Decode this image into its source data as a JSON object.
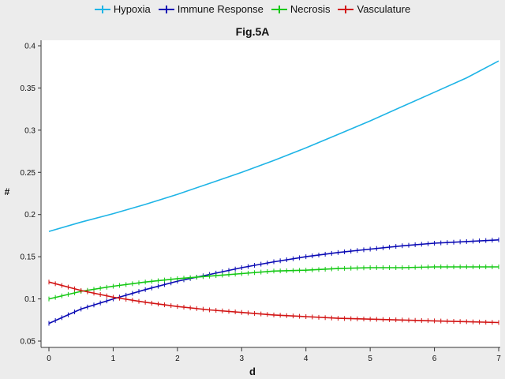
{
  "chart_data": {
    "type": "line",
    "title": "Fig.5A",
    "xlabel": "d",
    "ylabel": "#",
    "xlim": [
      0,
      7
    ],
    "ylim": [
      0.05,
      0.4
    ],
    "xticks": [
      "0",
      "1",
      "2",
      "3",
      "4",
      "5",
      "6",
      "7"
    ],
    "yticks": [
      "0.05",
      "0.1",
      "0.15",
      "0.2",
      "0.25",
      "0.3",
      "0.35",
      "0.4"
    ],
    "grid": false,
    "legend_position": "top",
    "x": [
      0,
      0.5,
      1,
      1.5,
      2,
      2.5,
      3,
      3.5,
      4,
      4.5,
      5,
      5.5,
      6,
      6.5,
      7
    ],
    "series": [
      {
        "name": "Hypoxia",
        "color": "#1EB4E6",
        "markers": false,
        "values": [
          0.18,
          0.191,
          0.201,
          0.212,
          0.224,
          0.237,
          0.25,
          0.264,
          0.279,
          0.295,
          0.311,
          0.328,
          0.345,
          0.362,
          0.382
        ]
      },
      {
        "name": "Immune Response",
        "color": "#0A0AB4",
        "markers": true,
        "values": [
          0.071,
          0.088,
          0.1,
          0.111,
          0.121,
          0.129,
          0.137,
          0.144,
          0.15,
          0.155,
          0.159,
          0.163,
          0.166,
          0.168,
          0.17
        ]
      },
      {
        "name": "Necrosis",
        "color": "#14C814",
        "markers": true,
        "values": [
          0.1,
          0.109,
          0.115,
          0.12,
          0.124,
          0.127,
          0.13,
          0.133,
          0.134,
          0.136,
          0.137,
          0.137,
          0.138,
          0.138,
          0.138
        ]
      },
      {
        "name": "Vasculature",
        "color": "#D21414",
        "markers": true,
        "values": [
          0.12,
          0.11,
          0.102,
          0.096,
          0.091,
          0.087,
          0.084,
          0.081,
          0.079,
          0.077,
          0.076,
          0.075,
          0.074,
          0.073,
          0.072
        ]
      }
    ]
  }
}
